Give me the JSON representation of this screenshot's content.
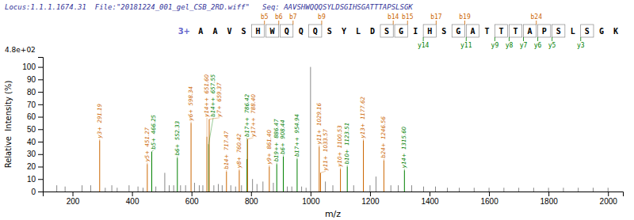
{
  "chart_data": {
    "type": "spectrum",
    "title": "Locus:1.1.1.1674.31  File:\"20181224_001_gel_CSB_2RD.wiff\"   Seq: AAVSHWQQQSYLDSGIHSGATTTAPSLSGK",
    "title_color": "#333399",
    "ymax_label": "4.8e+02",
    "x_label": "m/z",
    "y_label": "Relative  Intensity (%)",
    "xlim": [
      100,
      2050
    ],
    "ylim": [
      0,
      108
    ],
    "xticks": [
      200,
      400,
      600,
      800,
      1000,
      1200,
      1400,
      1600,
      1800,
      2000
    ],
    "yticks": [
      0,
      10,
      20,
      30,
      40,
      50,
      60,
      70,
      80,
      90,
      100
    ],
    "grid": false,
    "x": [
      147.0,
      175.0,
      232.0,
      261.0,
      291.19,
      310.0,
      332.0,
      350.0,
      390.0,
      420.0,
      437.0,
      451.27,
      466.25,
      480.0,
      510.0,
      525.0,
      540.0,
      552.33,
      563.0,
      580.0,
      598.34,
      610.0,
      626.0,
      638.0,
      651.6,
      657.55,
      659.37,
      675.0,
      690.0,
      703.0,
      717.47,
      732.0,
      748.0,
      760.42,
      768.0,
      786.42,
      788.4,
      805.0,
      820.0,
      840.0,
      861.4,
      875.0,
      886.47,
      908.44,
      922.0,
      937.0,
      954.94,
      970.0,
      985.0,
      1000.0,
      1029.16,
      1033.57,
      1050.0,
      1075.0,
      1100.53,
      1123.51,
      1145.0,
      1177.62,
      1200.0,
      1220.0,
      1246.56,
      1270.0,
      1295.0,
      1315.6,
      1340.0,
      1380.0,
      1420.0,
      1460.0,
      1500.0,
      1550.0,
      1600.0,
      1650.0,
      1700.0,
      1750.0,
      1800.0,
      1850.0,
      1900.0,
      1950.0,
      2000.0
    ],
    "values": [
      5,
      4,
      5,
      5,
      41,
      3,
      5,
      3,
      5,
      4,
      3,
      22,
      32,
      4,
      15,
      5,
      5,
      27,
      5,
      5,
      55,
      7,
      5,
      5,
      44,
      38,
      58,
      5,
      6,
      5,
      16,
      5,
      4,
      17,
      5,
      26,
      42,
      10,
      6,
      8,
      20,
      7,
      22,
      28,
      4,
      4,
      26,
      4,
      3,
      100,
      36,
      15,
      8,
      5,
      18,
      20,
      5,
      41,
      5,
      12,
      25,
      5,
      5,
      17,
      5,
      4,
      4,
      3,
      3,
      3,
      3,
      3,
      3,
      3,
      3,
      3,
      3,
      3,
      3
    ],
    "colors": [
      "#888888",
      "#888888",
      "#888888",
      "#888888",
      "#cc6600",
      "#888888",
      "#888888",
      "#888888",
      "#888888",
      "#888888",
      "#888888",
      "#cc6600",
      "#008000",
      "#888888",
      "#888888",
      "#888888",
      "#888888",
      "#008000",
      "#888888",
      "#888888",
      "#cc6600",
      "#888888",
      "#888888",
      "#888888",
      "#cc6600",
      "#008000",
      "#cc6600",
      "#888888",
      "#888888",
      "#888888",
      "#cc6600",
      "#888888",
      "#888888",
      "#cc6600",
      "#888888",
      "#008000",
      "#cc6600",
      "#888888",
      "#888888",
      "#888888",
      "#cc6600",
      "#888888",
      "#008000",
      "#008000",
      "#888888",
      "#888888",
      "#008000",
      "#888888",
      "#888888",
      "#888888",
      "#cc6600",
      "#cc6600",
      "#888888",
      "#888888",
      "#cc6600",
      "#008000",
      "#888888",
      "#cc6600",
      "#888888",
      "#888888",
      "#cc6600",
      "#888888",
      "#888888",
      "#008000",
      "#888888",
      "#888888",
      "#888888",
      "#888888",
      "#888888",
      "#888888",
      "#888888",
      "#888888",
      "#888888",
      "#888888",
      "#888888",
      "#888888",
      "#888888",
      "#888888",
      "#888888"
    ],
    "labels": [
      null,
      null,
      null,
      null,
      "y3+  291.19",
      null,
      null,
      null,
      null,
      null,
      null,
      "y5+  451.27",
      "b5+  466.25",
      null,
      null,
      null,
      null,
      "b6+  552.33",
      null,
      null,
      "y6+  598.34",
      null,
      null,
      null,
      "y14++  651.60",
      "b14++  657.55",
      "y7+  659.37",
      null,
      null,
      null,
      "b14+  717.47",
      null,
      null,
      "y8+  760.42",
      null,
      "b17++  786.42",
      "y17++  788.40",
      null,
      null,
      null,
      "y9+  861.40",
      null,
      "b19++  886.47",
      "b6+  908.44",
      null,
      null,
      "b17++  954.94",
      null,
      null,
      null,
      "y11+  1029.16",
      "y11+  1033.57",
      null,
      null,
      "y10+  1100.53",
      "b10+  1123.51",
      null,
      "y13+  1177.62",
      null,
      null,
      "b24+  1246.56",
      null,
      null,
      "y14+  1315.60",
      null,
      null,
      null,
      null,
      null,
      null,
      null,
      null,
      null,
      null,
      null,
      null,
      null,
      null,
      null
    ],
    "sequence": [
      "A",
      "A",
      "V",
      "S",
      "H",
      "W",
      "Q",
      "Q",
      "Q",
      "S",
      "Y",
      "L",
      "D",
      "S",
      "G",
      "I",
      "H",
      "S",
      "G",
      "A",
      "T",
      "T",
      "T",
      "A",
      "P",
      "S",
      "L",
      "S",
      "G",
      "K"
    ],
    "charge_state": "3+",
    "charge_color": "#6666cc",
    "b_ions": [
      {
        "position": 4,
        "label": "b5"
      },
      {
        "position": 5,
        "label": "b6"
      },
      {
        "position": 6,
        "label": "b7"
      },
      {
        "position": 8,
        "label": "b9"
      },
      {
        "position": 13,
        "label": "b14"
      },
      {
        "position": 14,
        "label": "b15"
      },
      {
        "position": 16,
        "label": "b17"
      },
      {
        "position": 18,
        "label": "b19"
      },
      {
        "position": 23,
        "label": "b24"
      }
    ],
    "y_ions": [
      {
        "position": 2,
        "label": "y3"
      },
      {
        "position": 4,
        "label": "y5"
      },
      {
        "position": 5,
        "label": "y6"
      },
      {
        "position": 6,
        "label": "y7"
      },
      {
        "position": 7,
        "label": "y8"
      },
      {
        "position": 8,
        "label": "y9"
      },
      {
        "position": 10,
        "label": "y11"
      },
      {
        "position": 13,
        "label": "y14"
      }
    ],
    "ion_b_color": "#cc6600",
    "ion_y_color": "#008000"
  }
}
